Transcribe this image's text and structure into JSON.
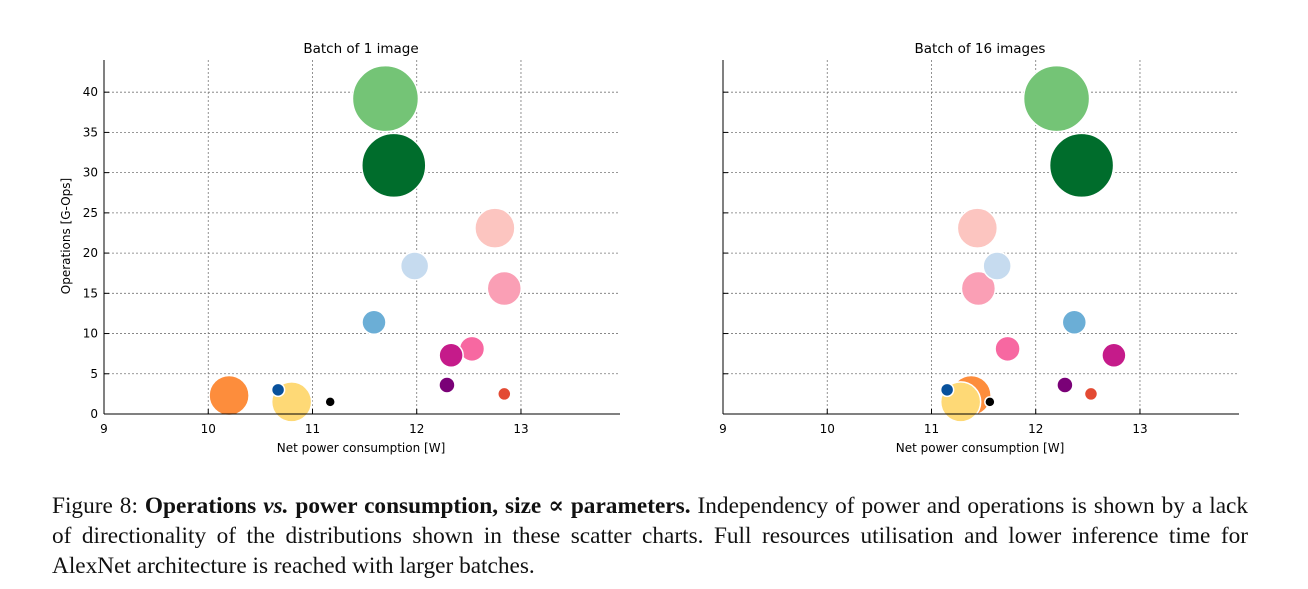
{
  "charts": {
    "left_title": "Batch of 1 image",
    "right_title": "Batch of 16 images",
    "xlabel": "Net power consumption [W]",
    "ylabel": "Operations [G-Ops]"
  },
  "chart_data": [
    {
      "type": "scatter",
      "title": "Batch of 1 image",
      "xlabel": "Net power consumption [W]",
      "ylabel": "Operations [G-Ops]",
      "xlim": [
        9,
        13.95
      ],
      "ylim": [
        0,
        44
      ],
      "x_ticks": [
        9,
        10,
        11,
        12,
        13
      ],
      "y_ticks": [
        0,
        5,
        10,
        15,
        20,
        25,
        30,
        35,
        40
      ],
      "grid": true,
      "marker_size_encodes": "parameters",
      "points": [
        {
          "x": 11.7,
          "y": 39.2,
          "size": 33,
          "color": "#74c476"
        },
        {
          "x": 11.78,
          "y": 30.9,
          "size": 32,
          "color": "#006d2c"
        },
        {
          "x": 12.75,
          "y": 23.1,
          "size": 20,
          "color": "#fcc5c0"
        },
        {
          "x": 11.98,
          "y": 18.4,
          "size": 14,
          "color": "#c6dbef"
        },
        {
          "x": 12.84,
          "y": 15.6,
          "size": 17,
          "color": "#fa9fb5"
        },
        {
          "x": 11.59,
          "y": 11.4,
          "size": 12,
          "color": "#6baed6"
        },
        {
          "x": 12.53,
          "y": 8.1,
          "size": 12.5,
          "color": "#f768a1"
        },
        {
          "x": 12.33,
          "y": 7.3,
          "size": 12,
          "color": "#c51b8a"
        },
        {
          "x": 12.29,
          "y": 3.6,
          "size": 8,
          "color": "#7a0177"
        },
        {
          "x": 12.84,
          "y": 2.5,
          "size": 6.5,
          "color": "#e34a33"
        },
        {
          "x": 10.2,
          "y": 2.3,
          "size": 20,
          "color": "#fd8d3c"
        },
        {
          "x": 10.67,
          "y": 3.0,
          "size": 6.5,
          "color": "#08519c"
        },
        {
          "x": 10.8,
          "y": 1.5,
          "size": 20,
          "color": "#fed976"
        },
        {
          "x": 11.17,
          "y": 1.5,
          "size": 5,
          "color": "#000000"
        }
      ]
    },
    {
      "type": "scatter",
      "title": "Batch of 16 images",
      "xlabel": "Net power consumption [W]",
      "ylabel": "",
      "xlim": [
        9,
        13.95
      ],
      "ylim": [
        0,
        44
      ],
      "x_ticks": [
        9,
        10,
        11,
        12,
        13
      ],
      "y_ticks": [
        0,
        5,
        10,
        15,
        20,
        25,
        30,
        35,
        40
      ],
      "grid": true,
      "marker_size_encodes": "parameters",
      "points": [
        {
          "x": 12.2,
          "y": 39.2,
          "size": 33,
          "color": "#74c476"
        },
        {
          "x": 12.44,
          "y": 30.9,
          "size": 32,
          "color": "#006d2c"
        },
        {
          "x": 11.44,
          "y": 23.1,
          "size": 20,
          "color": "#fcc5c0"
        },
        {
          "x": 11.63,
          "y": 18.4,
          "size": 14,
          "color": "#c6dbef"
        },
        {
          "x": 11.45,
          "y": 15.6,
          "size": 17,
          "color": "#fa9fb5"
        },
        {
          "x": 12.37,
          "y": 11.4,
          "size": 12,
          "color": "#6baed6"
        },
        {
          "x": 11.73,
          "y": 8.1,
          "size": 12.5,
          "color": "#f768a1"
        },
        {
          "x": 12.75,
          "y": 7.3,
          "size": 12,
          "color": "#c51b8a"
        },
        {
          "x": 12.28,
          "y": 3.6,
          "size": 8,
          "color": "#7a0177"
        },
        {
          "x": 12.53,
          "y": 2.5,
          "size": 6.5,
          "color": "#e34a33"
        },
        {
          "x": 11.38,
          "y": 2.3,
          "size": 20,
          "color": "#fd8d3c"
        },
        {
          "x": 11.15,
          "y": 3.0,
          "size": 6.5,
          "color": "#08519c"
        },
        {
          "x": 11.28,
          "y": 1.5,
          "size": 20,
          "color": "#fed976"
        },
        {
          "x": 11.56,
          "y": 1.5,
          "size": 5,
          "color": "#000000"
        }
      ]
    }
  ],
  "caption": {
    "label": "Figure 8:",
    "bold_1": "Operations",
    "italic_bold": "vs.",
    "bold_2": "power consumption, size ∝ parameters.",
    "text": "Independency of power and operations is shown by a lack of directionality of the distributions shown in these scatter charts. Full resources utilisation and lower inference time for AlexNet architecture is reached with larger batches."
  }
}
